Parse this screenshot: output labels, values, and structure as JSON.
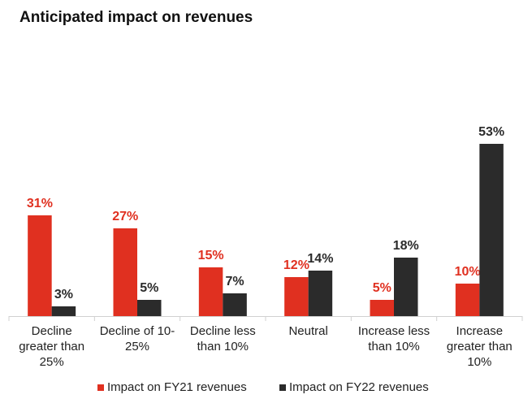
{
  "chart_data": {
    "type": "bar",
    "title": "Anticipated impact on revenues",
    "xlabel": "",
    "ylabel": "",
    "ylim": [
      0,
      60
    ],
    "grid": false,
    "legend_position": "bottom",
    "categories": [
      "Decline greater than 25%",
      "Decline of 10-25%",
      "Decline less than 10%",
      "Neutral",
      "Increase less than 10%",
      "Increase greater than 10%"
    ],
    "category_lines": [
      [
        "Decline",
        "greater than",
        "25%"
      ],
      [
        "Decline of 10-",
        "25%"
      ],
      [
        "Decline less",
        "than 10%"
      ],
      [
        "Neutral"
      ],
      [
        "Increase less",
        "than 10%"
      ],
      [
        "Increase",
        "greater than",
        "10%"
      ]
    ],
    "series": [
      {
        "name": "Impact on FY21 revenues",
        "color": "#e03020",
        "values": [
          31,
          27,
          15,
          12,
          5,
          10
        ],
        "labels": [
          "31%",
          "27%",
          "15%",
          "12%",
          "5%",
          "10%"
        ]
      },
      {
        "name": "Impact on FY22 revenues",
        "color": "#2b2b2b",
        "values": [
          3,
          5,
          7,
          14,
          18,
          53
        ],
        "labels": [
          "3%",
          "5%",
          "7%",
          "14%",
          "18%",
          "53%"
        ]
      }
    ]
  }
}
